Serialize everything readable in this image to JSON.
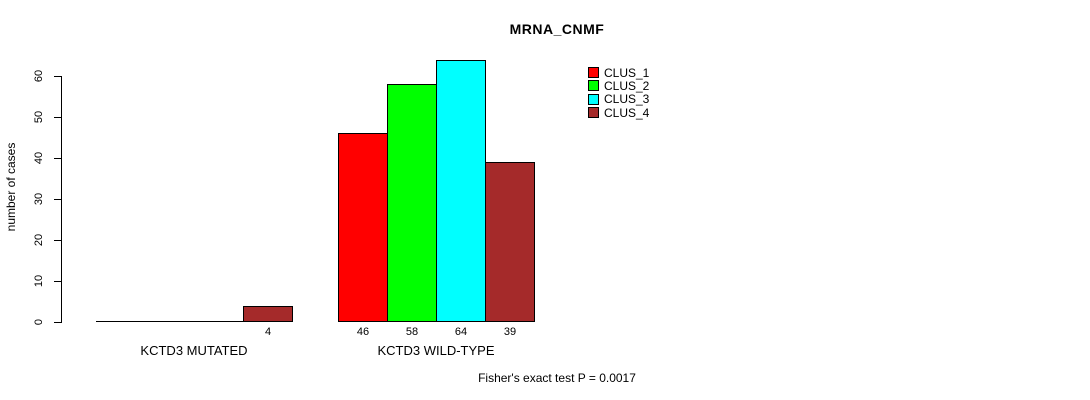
{
  "figure": {
    "background": "#ffffff",
    "axis_color": "#000000"
  },
  "chart_data": {
    "type": "bar",
    "title": "MRNA_CNMF",
    "xlabel": "",
    "ylabel": "number of cases",
    "ylim": [
      0,
      60
    ],
    "yticks": [
      "0",
      "10",
      "20",
      "30",
      "40",
      "50",
      "60"
    ],
    "grid": false,
    "legend_position": "top-right",
    "categories": [
      "KCTD3 MUTATED",
      "KCTD3 WILD-TYPE"
    ],
    "series": [
      {
        "name": "CLUS_1",
        "color": "#ff0000",
        "values": [
          0,
          46
        ]
      },
      {
        "name": "CLUS_2",
        "color": "#00ff00",
        "values": [
          0,
          58
        ]
      },
      {
        "name": "CLUS_3",
        "color": "#00ffff",
        "values": [
          0,
          64
        ]
      },
      {
        "name": "CLUS_4",
        "color": "#a52a2a",
        "values": [
          4,
          39
        ]
      }
    ],
    "bar_value_labels": [
      [
        "",
        "",
        "",
        "4"
      ],
      [
        "46",
        "58",
        "64",
        "39"
      ]
    ],
    "annotation": "Fisher's exact test P = 0.0017"
  }
}
